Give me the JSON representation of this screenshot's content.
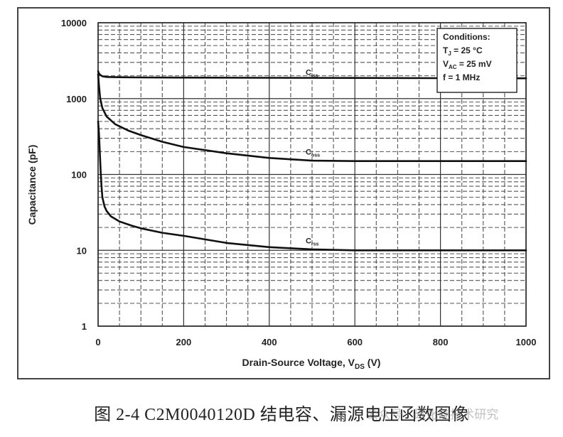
{
  "chart_data": {
    "type": "line",
    "xlabel": "Drain-Source Voltage, V",
    "xlabel_sub": "DS",
    "xlabel_unit": " (V)",
    "ylabel": "Capacitance (pF)",
    "y_scale": "log",
    "xlim": [
      0,
      1000
    ],
    "ylim": [
      1,
      10000
    ],
    "x_ticks": [
      0,
      200,
      400,
      600,
      800,
      1000
    ],
    "x_tick_labels": [
      "0",
      "200",
      "400",
      "600",
      "800",
      "1000"
    ],
    "y_ticks": [
      1,
      10,
      100,
      1000,
      10000
    ],
    "y_tick_labels": [
      "1",
      "10",
      "100",
      "1000",
      "10000"
    ],
    "grid": true,
    "series": [
      {
        "name": "C",
        "sub": "iss",
        "x": [
          0,
          2,
          5,
          10,
          20,
          50,
          100,
          200,
          400,
          600,
          800,
          1000
        ],
        "y": [
          2300,
          2150,
          2050,
          1970,
          1930,
          1910,
          1900,
          1890,
          1880,
          1870,
          1860,
          1850
        ]
      },
      {
        "name": "C",
        "sub": "oss",
        "x": [
          0,
          2,
          5,
          10,
          20,
          40,
          70,
          100,
          150,
          200,
          300,
          400,
          500,
          600,
          700,
          800,
          900,
          1000
        ],
        "y": [
          2100,
          1500,
          1000,
          750,
          580,
          460,
          380,
          330,
          270,
          230,
          190,
          165,
          152,
          150,
          150,
          150,
          150,
          150
        ]
      },
      {
        "name": "C",
        "sub": "rss",
        "x": [
          0,
          2,
          4,
          6,
          8,
          10,
          15,
          20,
          30,
          50,
          80,
          100,
          150,
          200,
          300,
          400,
          500,
          600,
          700,
          800,
          900,
          1000
        ],
        "y": [
          500,
          350,
          200,
          110,
          70,
          50,
          38,
          33,
          28,
          24,
          21,
          19.5,
          17,
          15.5,
          12.5,
          11,
          10.3,
          10,
          10,
          10,
          10,
          10
        ]
      }
    ],
    "annotation": {
      "title": "Conditions:",
      "lines": [
        {
          "main": "T",
          "sub": "J",
          "rest": " = 25 °C"
        },
        {
          "main": "V",
          "sub": "AC",
          "rest": " = 25 mV"
        },
        {
          "main": "f = 1 MHz",
          "sub": "",
          "rest": ""
        }
      ]
    }
  },
  "caption": "图 2-4 C2M0040120D 结电容、漏源电压函数图像",
  "watermark": "公众号 · 碳化硅技术研究"
}
